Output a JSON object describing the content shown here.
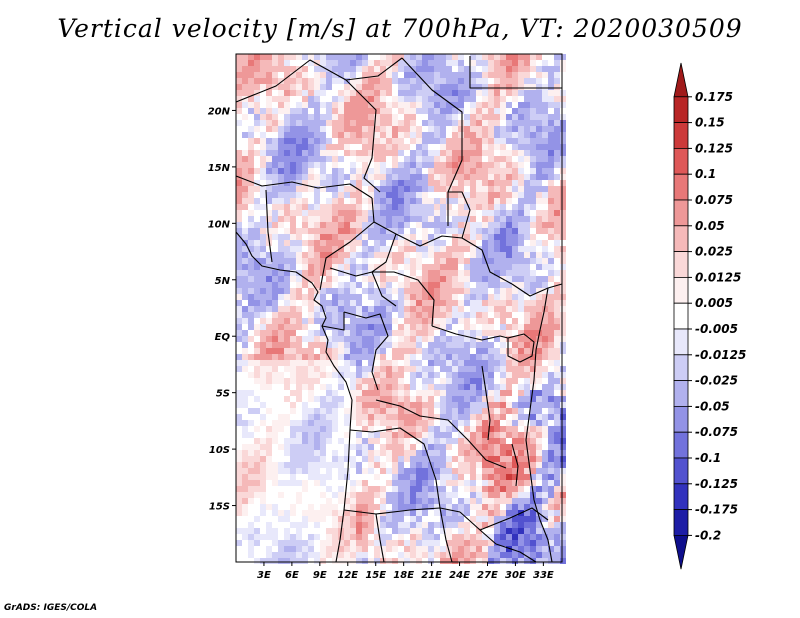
{
  "title": "Vertical velocity [m/s] at 700hPa, VT: 2020030509",
  "footer": "GrADS: IGES/COLA",
  "map": {
    "variable": "Vertical velocity",
    "units": "m/s",
    "level": "700hPa",
    "valid_time": "2020030509",
    "lon_range": [
      0,
      35
    ],
    "lat_range": [
      -20,
      25
    ],
    "lat_ticks": [
      {
        "value": 20,
        "label": "20N"
      },
      {
        "value": 15,
        "label": "15N"
      },
      {
        "value": 10,
        "label": "10N"
      },
      {
        "value": 5,
        "label": "5N"
      },
      {
        "value": 0,
        "label": "EQ"
      },
      {
        "value": -5,
        "label": "5S"
      },
      {
        "value": -10,
        "label": "10S"
      },
      {
        "value": -15,
        "label": "15S"
      }
    ],
    "lon_ticks": [
      {
        "value": 3,
        "label": "3E"
      },
      {
        "value": 6,
        "label": "6E"
      },
      {
        "value": 9,
        "label": "9E"
      },
      {
        "value": 12,
        "label": "12E"
      },
      {
        "value": 15,
        "label": "15E"
      },
      {
        "value": 18,
        "label": "18E"
      },
      {
        "value": 21,
        "label": "21E"
      },
      {
        "value": 24,
        "label": "24E"
      },
      {
        "value": 27,
        "label": "27E"
      },
      {
        "value": 30,
        "label": "30E"
      },
      {
        "value": 33,
        "label": "33E"
      }
    ]
  },
  "colorbar": {
    "levels": [
      "0.175",
      "0.15",
      "0.125",
      "0.1",
      "0.075",
      "0.05",
      "0.025",
      "0.0125",
      "0.005",
      "-0.005",
      "-0.0125",
      "-0.025",
      "-0.05",
      "-0.075",
      "-0.1",
      "-0.125",
      "-0.175",
      "-0.2"
    ],
    "colors": [
      "#a01a1a",
      "#b82626",
      "#cc3a3a",
      "#de5858",
      "#e87878",
      "#ee9898",
      "#f5b9b9",
      "#fad8d8",
      "#fdf0f0",
      "#ffffff",
      "#e8e8fb",
      "#cdcdf5",
      "#b1b1ee",
      "#9393e6",
      "#7272dc",
      "#5252cf",
      "#3232bd",
      "#1d1da6",
      "#0e0e8c"
    ]
  }
}
